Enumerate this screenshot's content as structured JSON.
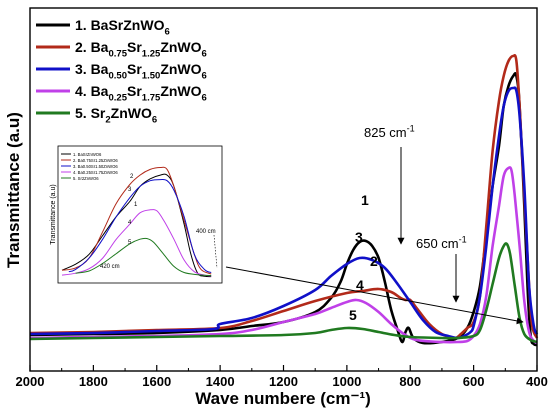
{
  "chart_data": {
    "type": "line",
    "title": "",
    "xlabel": "Wave numbere (cm⁻¹)",
    "ylabel": "Transmittance (a.u)",
    "xlim": [
      2000,
      400
    ],
    "x_ticks": [
      "2000",
      "1800",
      "1600",
      "1400",
      "1200",
      "1000",
      "800",
      "600",
      "400"
    ],
    "legend_position": "top-left",
    "series": [
      {
        "legend": "1. BaSrZnWO",
        "legend_sub": "6",
        "legend_parts": [
          [
            "1. BaSrZnWO",
            "n"
          ],
          [
            "6",
            "s"
          ]
        ],
        "color": "#000000",
        "points": [
          [
            2000,
            11
          ],
          [
            1800,
            12
          ],
          [
            1600,
            13
          ],
          [
            1400,
            16
          ],
          [
            1300,
            20
          ],
          [
            1200,
            24
          ],
          [
            1100,
            34
          ],
          [
            1050,
            48
          ],
          [
            1020,
            64
          ],
          [
            1000,
            82
          ],
          [
            980,
            96
          ],
          [
            960,
            104
          ],
          [
            940,
            105
          ],
          [
            920,
            100
          ],
          [
            900,
            88
          ],
          [
            880,
            64
          ],
          [
            860,
            36
          ],
          [
            840,
            16
          ],
          [
            825,
            4
          ],
          [
            815,
            14
          ],
          [
            805,
            18
          ],
          [
            790,
            8
          ],
          [
            760,
            3
          ],
          [
            700,
            4
          ],
          [
            650,
            8
          ],
          [
            620,
            18
          ],
          [
            600,
            34
          ],
          [
            580,
            60
          ],
          [
            560,
            110
          ],
          [
            540,
            160
          ],
          [
            520,
            200
          ],
          [
            505,
            240
          ],
          [
            490,
            260
          ],
          [
            475,
            270
          ],
          [
            465,
            270
          ],
          [
            455,
            240
          ],
          [
            440,
            140
          ],
          [
            430,
            60
          ],
          [
            420,
            10
          ],
          [
            410,
            2
          ],
          [
            400,
            1
          ]
        ]
      },
      {
        "legend": "2. Ba0.75Sr1.25ZnWO6",
        "legend_parts": [
          [
            "2. Ba",
            "n"
          ],
          [
            "0.75",
            "s"
          ],
          [
            "Sr",
            "n"
          ],
          [
            "1.25",
            "s"
          ],
          [
            "ZnWO",
            "n"
          ],
          [
            "6",
            "s"
          ]
        ],
        "color": "#b22a1a",
        "points": [
          [
            2000,
            13
          ],
          [
            1800,
            14
          ],
          [
            1600,
            16
          ],
          [
            1400,
            18
          ],
          [
            1300,
            25
          ],
          [
            1200,
            35
          ],
          [
            1100,
            45
          ],
          [
            1000,
            53
          ],
          [
            950,
            55
          ],
          [
            900,
            57
          ],
          [
            860,
            54
          ],
          [
            830,
            48
          ],
          [
            815,
            46
          ],
          [
            800,
            46
          ],
          [
            780,
            38
          ],
          [
            740,
            22
          ],
          [
            700,
            12
          ],
          [
            660,
            8
          ],
          [
            640,
            12
          ],
          [
            620,
            18
          ],
          [
            600,
            24
          ],
          [
            580,
            50
          ],
          [
            560,
            120
          ],
          [
            540,
            195
          ],
          [
            520,
            245
          ],
          [
            505,
            270
          ],
          [
            490,
            285
          ],
          [
            475,
            290
          ],
          [
            465,
            285
          ],
          [
            455,
            240
          ],
          [
            440,
            150
          ],
          [
            425,
            60
          ],
          [
            415,
            20
          ],
          [
            400,
            8
          ]
        ]
      },
      {
        "legend": "3. Ba0.50Sr1.50ZnWO6",
        "legend_parts": [
          [
            "3. Ba",
            "n"
          ],
          [
            "0.50",
            "s"
          ],
          [
            "Sr",
            "n"
          ],
          [
            "1.50",
            "s"
          ],
          [
            "ZnWO",
            "n"
          ],
          [
            "6",
            "s"
          ]
        ],
        "color": "#1010c8",
        "points": [
          [
            2000,
            12
          ],
          [
            1800,
            13
          ],
          [
            1600,
            15
          ],
          [
            1420,
            17
          ],
          [
            1400,
            22
          ],
          [
            1300,
            28
          ],
          [
            1200,
            40
          ],
          [
            1100,
            56
          ],
          [
            1050,
            70
          ],
          [
            1000,
            82
          ],
          [
            960,
            88
          ],
          [
            920,
            86
          ],
          [
            880,
            78
          ],
          [
            840,
            62
          ],
          [
            800,
            44
          ],
          [
            760,
            26
          ],
          [
            720,
            14
          ],
          [
            680,
            10
          ],
          [
            650,
            8
          ],
          [
            630,
            10
          ],
          [
            610,
            14
          ],
          [
            600,
            20
          ],
          [
            580,
            50
          ],
          [
            560,
            100
          ],
          [
            540,
            160
          ],
          [
            520,
            210
          ],
          [
            505,
            240
          ],
          [
            490,
            255
          ],
          [
            475,
            258
          ],
          [
            465,
            255
          ],
          [
            455,
            230
          ],
          [
            440,
            160
          ],
          [
            425,
            60
          ],
          [
            410,
            20
          ],
          [
            400,
            12
          ]
        ]
      },
      {
        "legend": "4. Ba0.25Sr1.75ZnWO6",
        "legend_parts": [
          [
            "4. Ba",
            "n"
          ],
          [
            "0.25",
            "s"
          ],
          [
            "Sr",
            "n"
          ],
          [
            "1.75",
            "s"
          ],
          [
            "ZnWO",
            "n"
          ],
          [
            "6",
            "s"
          ]
        ],
        "color": "#c040e8",
        "points": [
          [
            2000,
            8
          ],
          [
            1800,
            9
          ],
          [
            1600,
            10
          ],
          [
            1400,
            12
          ],
          [
            1300,
            16
          ],
          [
            1200,
            24
          ],
          [
            1100,
            32
          ],
          [
            1050,
            38
          ],
          [
            1000,
            44
          ],
          [
            970,
            46
          ],
          [
            940,
            43
          ],
          [
            900,
            34
          ],
          [
            860,
            22
          ],
          [
            820,
            12
          ],
          [
            780,
            6
          ],
          [
            700,
            4
          ],
          [
            650,
            4
          ],
          [
            620,
            5
          ],
          [
            600,
            10
          ],
          [
            580,
            22
          ],
          [
            560,
            50
          ],
          [
            540,
            100
          ],
          [
            520,
            140
          ],
          [
            505,
            170
          ],
          [
            490,
            178
          ],
          [
            480,
            175
          ],
          [
            470,
            150
          ],
          [
            455,
            100
          ],
          [
            440,
            45
          ],
          [
            425,
            14
          ],
          [
            410,
            5
          ],
          [
            400,
            3
          ]
        ]
      },
      {
        "legend": "5. Sr2ZnWO6",
        "legend_parts": [
          [
            "5. Sr",
            "n"
          ],
          [
            "2",
            "s"
          ],
          [
            "ZnWO",
            "n"
          ],
          [
            "6",
            "s"
          ]
        ],
        "color": "#207a20",
        "points": [
          [
            2000,
            7
          ],
          [
            1800,
            8
          ],
          [
            1600,
            9
          ],
          [
            1400,
            10
          ],
          [
            1200,
            11
          ],
          [
            1100,
            13
          ],
          [
            1050,
            16
          ],
          [
            1000,
            18
          ],
          [
            950,
            17
          ],
          [
            900,
            14
          ],
          [
            850,
            11
          ],
          [
            800,
            9
          ],
          [
            700,
            8
          ],
          [
            650,
            8
          ],
          [
            600,
            10
          ],
          [
            580,
            16
          ],
          [
            560,
            36
          ],
          [
            540,
            62
          ],
          [
            520,
            88
          ],
          [
            505,
            100
          ],
          [
            495,
            102
          ],
          [
            485,
            92
          ],
          [
            470,
            60
          ],
          [
            455,
            28
          ],
          [
            440,
            12
          ],
          [
            420,
            6
          ],
          [
            400,
            4
          ]
        ]
      }
    ],
    "annotations": {
      "peak_labels": [
        "1",
        "2",
        "3",
        "4",
        "5"
      ],
      "label_825": "825 cm",
      "label_825_sup": "-1",
      "label_650": "650 cm",
      "label_650_sup": "-1"
    },
    "inset": {
      "ylabel": "Transmittance (a.u)",
      "legend": [
        "1. BaSrZnWO6",
        "2. Ba0.75Sr1.25ZnWO6",
        "3. Ba0.50Sr1.50ZnWO6",
        "4. Ba0.25Sr1.75ZnWO6",
        "5. Sr2ZnWO6"
      ],
      "label_400": "400 cm",
      "label_420": "420 cm",
      "peak_labels": [
        "1",
        "2",
        "3",
        "4",
        "5"
      ]
    }
  }
}
